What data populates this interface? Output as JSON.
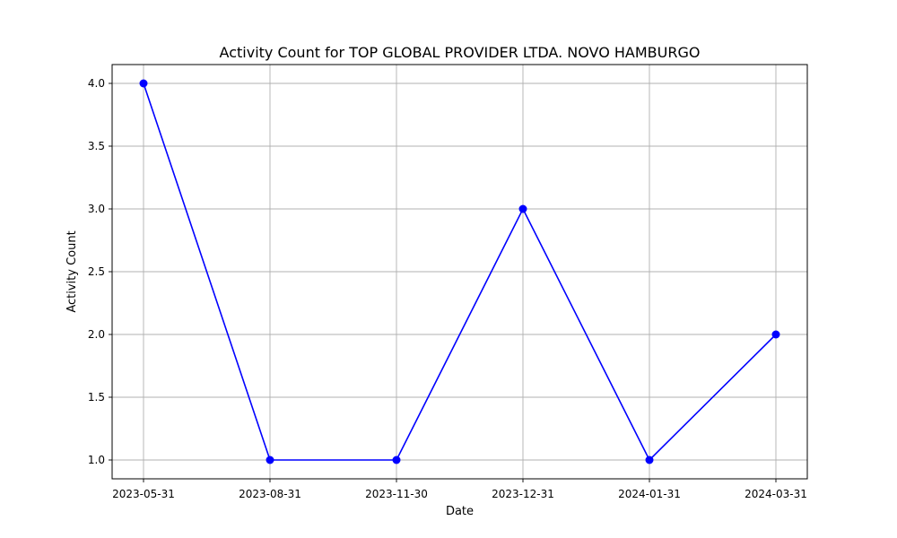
{
  "chart_data": {
    "type": "line",
    "title": "Activity Count for TOP GLOBAL PROVIDER LTDA. NOVO HAMBURGO",
    "xlabel": "Date",
    "ylabel": "Activity Count",
    "x_scale": "categorical",
    "categories": [
      "2023-05-31",
      "2023-08-31",
      "2023-11-30",
      "2023-12-31",
      "2024-01-31",
      "2024-03-31"
    ],
    "series": [
      {
        "values": [
          4,
          1,
          1,
          3,
          1,
          2
        ],
        "color": "#0000ff",
        "marker": "circle"
      }
    ],
    "ylim": [
      0.85,
      4.15
    ],
    "yticks": [
      1.0,
      1.5,
      2.0,
      2.5,
      3.0,
      3.5,
      4.0
    ],
    "ytick_labels": [
      "1.0",
      "1.5",
      "2.0",
      "2.5",
      "3.0",
      "3.5",
      "4.0"
    ],
    "grid": true,
    "legend": "none"
  }
}
